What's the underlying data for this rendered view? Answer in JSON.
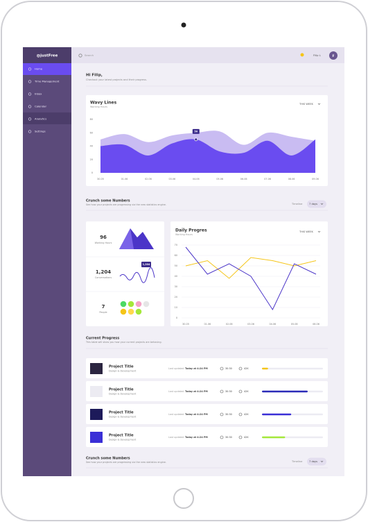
{
  "header": {
    "logo": "@justFree",
    "search": "Search",
    "user": "Filip L",
    "avatar": "F"
  },
  "sidebar": {
    "items": [
      "Home",
      "Time Management",
      "Inbox",
      "Calendar",
      "Analytics",
      "Settings"
    ]
  },
  "greeting": {
    "title": "Hi Filip,",
    "subtitle": "Checkout your latest projects and their progress."
  },
  "chart_data": [
    {
      "type": "area",
      "title": "Wavy Lines",
      "subtitle": "Working Hours",
      "period": "THIS WEEK",
      "annotation": "50",
      "categories": [
        "30.05",
        "01.06",
        "02.06",
        "03.06",
        "04.06",
        "05.06",
        "06.06",
        "07.06",
        "08.06",
        "09.06"
      ],
      "series": [
        {
          "color": "#c9bcf2",
          "values": [
            50,
            58,
            46,
            56,
            60,
            62,
            42,
            60,
            54,
            48
          ]
        },
        {
          "color": "#6a4cf0",
          "values": [
            40,
            42,
            26,
            44,
            50,
            32,
            30,
            48,
            26,
            50
          ]
        }
      ],
      "ylim": [
        0,
        80
      ],
      "yticks": [
        0,
        20,
        40,
        60,
        80
      ],
      "grid": false
    },
    {
      "type": "line",
      "title": "Daily Progres",
      "subtitle": "Working Hours",
      "period": "THIS WEEK",
      "categories": [
        "30.05",
        "01.06",
        "02.06",
        "03.06",
        "04.06",
        "05.06",
        "06.06"
      ],
      "series": [
        {
          "color": "#f5c518",
          "values": [
            50,
            55,
            38,
            58,
            55,
            50,
            55
          ]
        },
        {
          "color": "#4b35c8",
          "values": [
            68,
            42,
            52,
            40,
            8,
            52,
            42
          ]
        }
      ],
      "ylim": [
        0,
        70
      ],
      "yticks": [
        0,
        10,
        20,
        30,
        40,
        50,
        60,
        70
      ],
      "grid": true
    }
  ],
  "crunch": {
    "title": "Crunch some Numbers",
    "subtitle": "See how your projects are progressing via the new statistics engine.",
    "filter_label": "Timeline",
    "filter_value": "7 days"
  },
  "stats": [
    {
      "value": "96",
      "label": "Working Hours"
    },
    {
      "value": "1,204",
      "label": "Conversations"
    },
    {
      "value": "7",
      "label": "People"
    }
  ],
  "progress": {
    "title": "Current Progress",
    "subtitle": "This table will show you how your current projects are behaving.",
    "rows": [
      {
        "title": "Project Title",
        "subtitle": "Design & Development",
        "updated_label": "Last updated",
        "updated": "Today at 4:24 PM",
        "time": "30:30",
        "comments": "42K",
        "progress": 10,
        "color": "#f5c518"
      },
      {
        "title": "Project Title",
        "subtitle": "Design & Development",
        "updated_label": "Last updated",
        "updated": "Today at 4:24 PM",
        "time": "30:30",
        "comments": "42K",
        "progress": 75,
        "color": "#2b2bb8"
      },
      {
        "title": "Project Title",
        "subtitle": "Design & Development",
        "updated_label": "Last updated",
        "updated": "Today at 4:24 PM",
        "time": "30:30",
        "comments": "42K",
        "progress": 48,
        "color": "#3a2fd6"
      },
      {
        "title": "Project Title",
        "subtitle": "Design & Development",
        "updated_label": "Last updated",
        "updated": "Today at 4:24 PM",
        "time": "30:30",
        "comments": "42K",
        "progress": 38,
        "color": "#a4e83a"
      }
    ]
  },
  "crunch_bottom": {
    "title": "Crunch some Numbers",
    "subtitle": "See how your projects are progressing via the new statistics engine.",
    "filter_label": "Timeline",
    "filter_value": "7 days"
  }
}
